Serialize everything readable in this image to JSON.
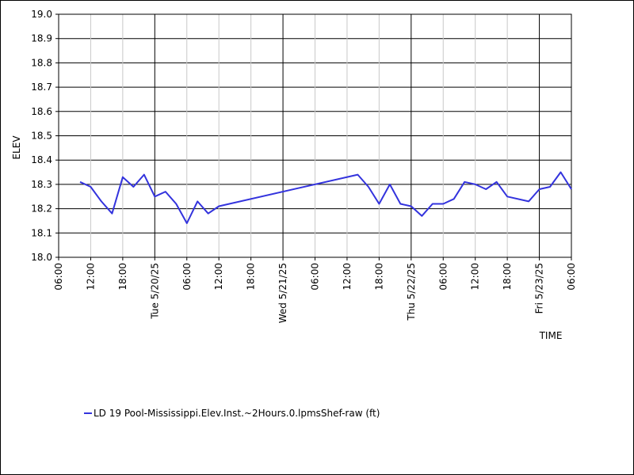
{
  "chart_data": {
    "type": "line",
    "title": "",
    "xlabel": "TIME",
    "ylabel": "ELEV",
    "ylim": [
      18.0,
      19.0
    ],
    "yticks": [
      "18.0",
      "18.1",
      "18.2",
      "18.3",
      "18.4",
      "18.5",
      "18.6",
      "18.7",
      "18.8",
      "18.9",
      "19.0"
    ],
    "xlim": [
      "2025-05-19T06:00",
      "2025-05-23T06:00"
    ],
    "xticks": [
      {
        "t": "2025-05-19T06:00",
        "label": "06:00",
        "major": false
      },
      {
        "t": "2025-05-19T12:00",
        "label": "12:00",
        "major": false
      },
      {
        "t": "2025-05-19T18:00",
        "label": "18:00",
        "major": false
      },
      {
        "t": "2025-05-20T00:00",
        "label": "Tue 5/20/25",
        "major": true
      },
      {
        "t": "2025-05-20T06:00",
        "label": "06:00",
        "major": false
      },
      {
        "t": "2025-05-20T12:00",
        "label": "12:00",
        "major": false
      },
      {
        "t": "2025-05-20T18:00",
        "label": "18:00",
        "major": false
      },
      {
        "t": "2025-05-21T00:00",
        "label": "Wed 5/21/25",
        "major": true
      },
      {
        "t": "2025-05-21T06:00",
        "label": "06:00",
        "major": false
      },
      {
        "t": "2025-05-21T12:00",
        "label": "12:00",
        "major": false
      },
      {
        "t": "2025-05-21T18:00",
        "label": "18:00",
        "major": false
      },
      {
        "t": "2025-05-22T00:00",
        "label": "Thu 5/22/25",
        "major": true
      },
      {
        "t": "2025-05-22T06:00",
        "label": "06:00",
        "major": false
      },
      {
        "t": "2025-05-22T12:00",
        "label": "12:00",
        "major": false
      },
      {
        "t": "2025-05-22T18:00",
        "label": "18:00",
        "major": false
      },
      {
        "t": "2025-05-23T00:00",
        "label": "Fri 5/23/25",
        "major": true
      },
      {
        "t": "2025-05-23T06:00",
        "label": "06:00",
        "major": false
      }
    ],
    "grid": true,
    "legend_position": "bottom-left",
    "series": [
      {
        "name": "LD 19 Pool-Mississippi.Elev.Inst.~2Hours.0.lpmsShef-raw (ft)",
        "color": "#3333dd",
        "points": [
          {
            "t": "2025-05-19T10:00",
            "y": 18.31
          },
          {
            "t": "2025-05-19T12:00",
            "y": 18.29
          },
          {
            "t": "2025-05-19T14:00",
            "y": 18.23
          },
          {
            "t": "2025-05-19T16:00",
            "y": 18.18
          },
          {
            "t": "2025-05-19T18:00",
            "y": 18.33
          },
          {
            "t": "2025-05-19T20:00",
            "y": 18.29
          },
          {
            "t": "2025-05-19T22:00",
            "y": 18.34
          },
          {
            "t": "2025-05-20T00:00",
            "y": 18.25
          },
          {
            "t": "2025-05-20T02:00",
            "y": 18.27
          },
          {
            "t": "2025-05-20T04:00",
            "y": 18.22
          },
          {
            "t": "2025-05-20T06:00",
            "y": 18.14
          },
          {
            "t": "2025-05-20T08:00",
            "y": 18.23
          },
          {
            "t": "2025-05-20T10:00",
            "y": 18.18
          },
          {
            "t": "2025-05-20T12:00",
            "y": 18.21
          },
          {
            "t": "2025-05-21T14:00",
            "y": 18.34
          },
          {
            "t": "2025-05-21T16:00",
            "y": 18.29
          },
          {
            "t": "2025-05-21T18:00",
            "y": 18.22
          },
          {
            "t": "2025-05-21T20:00",
            "y": 18.3
          },
          {
            "t": "2025-05-21T22:00",
            "y": 18.22
          },
          {
            "t": "2025-05-22T00:00",
            "y": 18.21
          },
          {
            "t": "2025-05-22T02:00",
            "y": 18.17
          },
          {
            "t": "2025-05-22T04:00",
            "y": 18.22
          },
          {
            "t": "2025-05-22T06:00",
            "y": 18.22
          },
          {
            "t": "2025-05-22T08:00",
            "y": 18.24
          },
          {
            "t": "2025-05-22T10:00",
            "y": 18.31
          },
          {
            "t": "2025-05-22T12:00",
            "y": 18.3
          },
          {
            "t": "2025-05-22T14:00",
            "y": 18.28
          },
          {
            "t": "2025-05-22T16:00",
            "y": 18.31
          },
          {
            "t": "2025-05-22T18:00",
            "y": 18.25
          },
          {
            "t": "2025-05-22T22:00",
            "y": 18.23
          },
          {
            "t": "2025-05-23T00:00",
            "y": 18.28
          },
          {
            "t": "2025-05-23T02:00",
            "y": 18.29
          },
          {
            "t": "2025-05-23T04:00",
            "y": 18.35
          },
          {
            "t": "2025-05-23T06:00",
            "y": 18.28
          }
        ]
      }
    ]
  }
}
